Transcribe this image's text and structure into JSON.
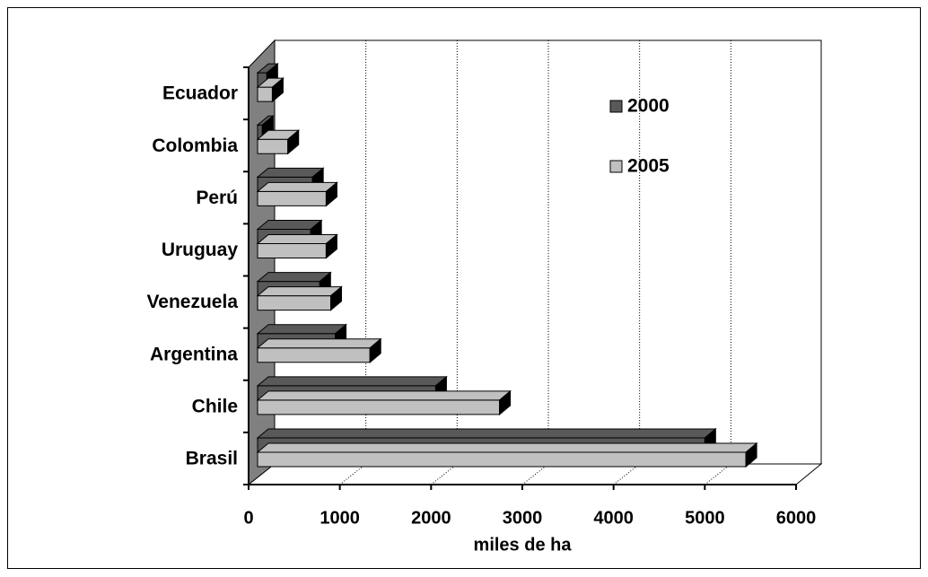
{
  "chart_data": {
    "type": "bar3d-horizontal",
    "x_label": "miles de ha",
    "categories": [
      "Brasil",
      "Chile",
      "Argentina",
      "Venezuela",
      "Uruguay",
      "Perú",
      "Colombia",
      "Ecuador"
    ],
    "series": [
      {
        "name": "2000",
        "color": "#595959",
        "values": [
          5000,
          2050,
          950,
          780,
          680,
          700,
          150,
          200
        ]
      },
      {
        "name": "2005",
        "color": "#c0c0c0",
        "values": [
          5450,
          2750,
          1330,
          900,
          850,
          850,
          430,
          260
        ]
      }
    ],
    "xlim": [
      0,
      6000
    ],
    "xticks": [
      0,
      1000,
      2000,
      3000,
      4000,
      5000,
      6000
    ],
    "grid": true
  }
}
